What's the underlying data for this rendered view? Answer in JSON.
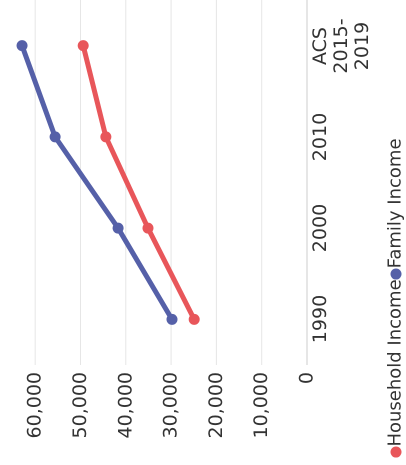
{
  "chart_data": {
    "type": "line",
    "categories": [
      "1990",
      "2000",
      "2010",
      "ACS 2015-2019"
    ],
    "series": [
      {
        "name": "Household Income",
        "color": "#e8565a",
        "values": [
          24900,
          35100,
          44400,
          49400
        ]
      },
      {
        "name": "Family Income",
        "color": "#5560a8",
        "values": [
          29800,
          41700,
          55600,
          62900
        ]
      }
    ],
    "ylim": [
      0,
      66000
    ],
    "yticks": [
      0,
      {
        "value": 10000,
        "label": "10,000"
      },
      {
        "value": 20000,
        "label": "20,000"
      },
      {
        "value": 30000,
        "label": "30,000"
      },
      {
        "value": 40000,
        "label": "40,000"
      },
      {
        "value": 50000,
        "label": "50,000"
      },
      {
        "value": 60000,
        "label": "60,000"
      }
    ],
    "grid": true
  }
}
